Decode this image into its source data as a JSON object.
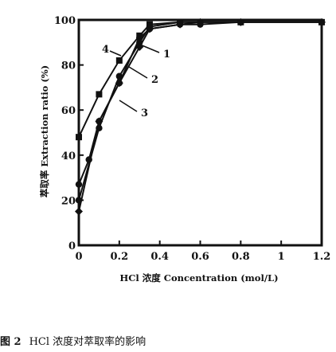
{
  "chart_data": {
    "type": "line",
    "xlabel": "HCl 浓度 Concentration (mol/L)",
    "ylabel": "萃取率 Extraction ratio (%)",
    "xlim": [
      0,
      1.2
    ],
    "ylim": [
      0,
      100
    ],
    "x_ticks": [
      "0",
      "0.2",
      "0.4",
      "0.6",
      "0.8",
      "1",
      "1.2"
    ],
    "y_ticks": [
      "0",
      "20",
      "40",
      "60",
      "80",
      "100"
    ],
    "grid": false,
    "series": [
      {
        "name": "1",
        "marker": "circle",
        "x": [
          0,
          0.1,
          0.2,
          0.3,
          0.35,
          0.5,
          0.6,
          0.8,
          1.2
        ],
        "y": [
          20,
          52,
          75,
          90,
          97,
          99,
          99,
          99,
          99
        ]
      },
      {
        "name": "2",
        "marker": "diamond",
        "x": [
          0,
          0.1,
          0.2,
          0.3,
          0.35,
          0.5,
          0.6,
          0.8,
          1.2
        ],
        "y": [
          15,
          55,
          72,
          88,
          96,
          98,
          99,
          99,
          99
        ]
      },
      {
        "name": "3",
        "marker": "circle",
        "x": [
          0,
          0.05,
          0.1,
          0.2,
          0.3,
          0.35,
          0.5,
          0.6,
          0.8,
          1.2
        ],
        "y": [
          27,
          38,
          55,
          72,
          92,
          96,
          98,
          98,
          99,
          99
        ]
      },
      {
        "name": "4",
        "marker": "square",
        "x": [
          0,
          0.1,
          0.2,
          0.3,
          0.35,
          0.5,
          0.6,
          0.8,
          1.2
        ],
        "y": [
          48,
          67,
          82,
          93,
          98,
          99,
          99,
          99,
          99
        ]
      }
    ]
  },
  "caption": {
    "number": "图 2",
    "text": "HCl 浓度对萃取率的影响"
  }
}
